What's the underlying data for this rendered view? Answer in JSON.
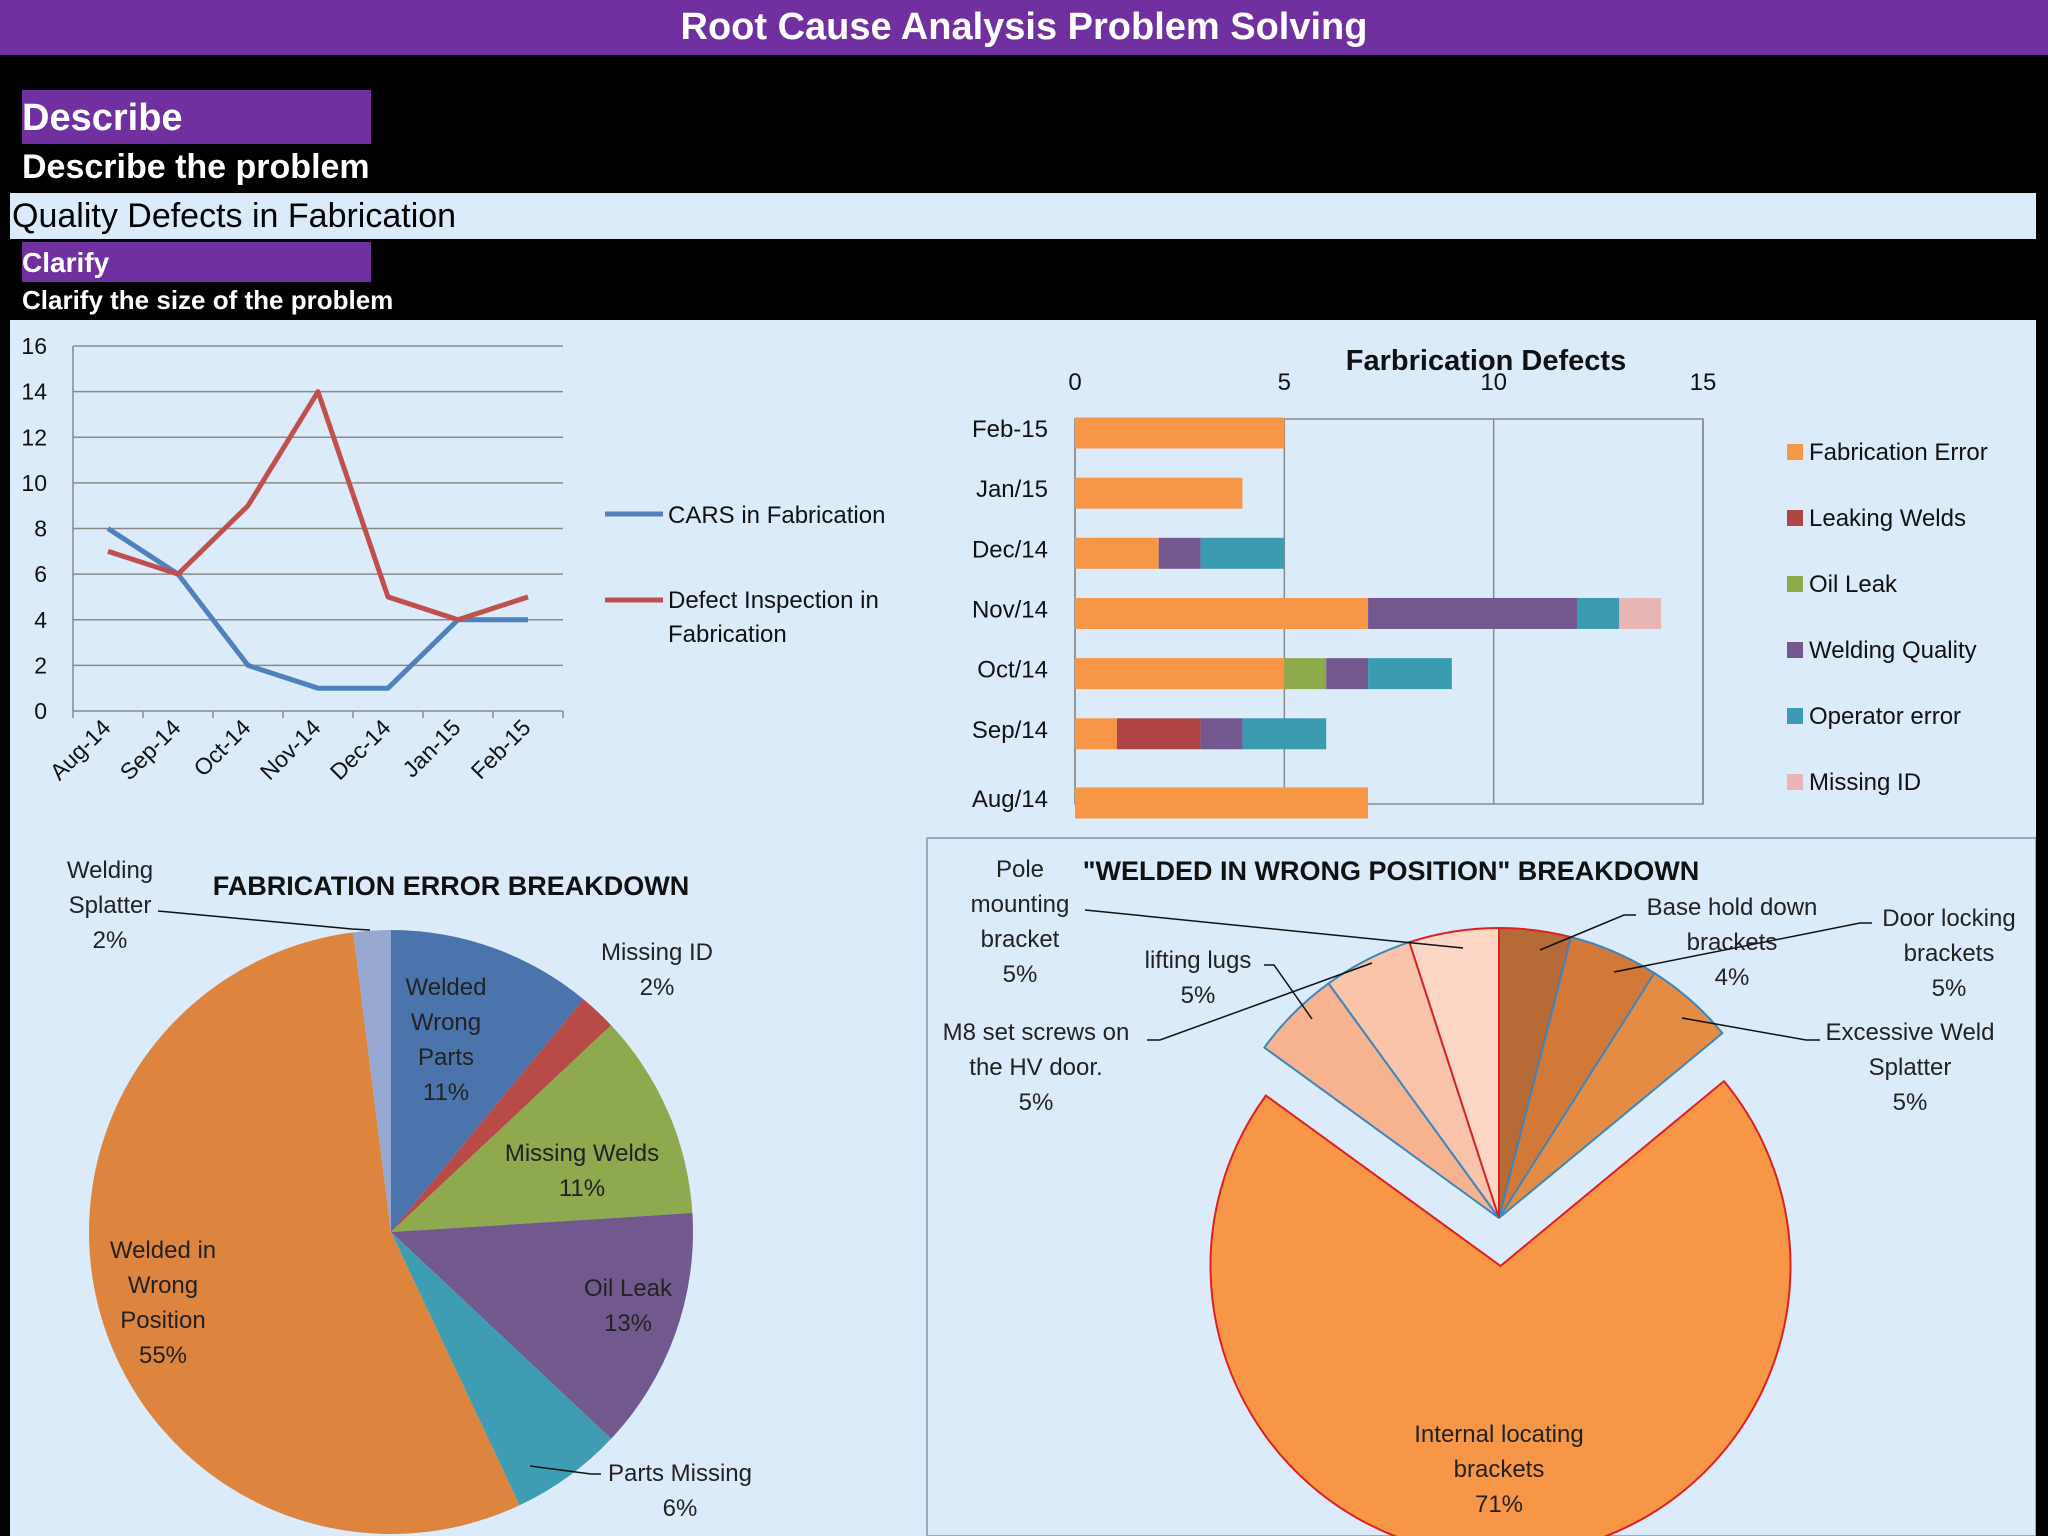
{
  "header": {
    "title": "Root Cause Analysis Problem Solving"
  },
  "describe": {
    "section": "Describe",
    "heading": "Describe the problem",
    "problem": "Quality Defects in Fabrication"
  },
  "clarify": {
    "section": "Clarify",
    "heading": "Clarify the size of the problem"
  },
  "colors": {
    "accent": "#7030a0",
    "panel": "#dcebfa"
  },
  "chart_data": [
    {
      "type": "line",
      "title": "",
      "categories": [
        "Aug-14",
        "Sep-14",
        "Oct-14",
        "Nov-14",
        "Dec-14",
        "Jan-15",
        "Feb-15"
      ],
      "ylim": [
        0,
        16
      ],
      "yticks": [
        "0",
        "2",
        "4",
        "6",
        "8",
        "10",
        "12",
        "14",
        "16"
      ],
      "grid": true,
      "legend": "right",
      "series": [
        {
          "name": "CARS in Fabrication",
          "color": "#4f81bd",
          "values": [
            8,
            6,
            2,
            1,
            1,
            4,
            4
          ]
        },
        {
          "name": "Defect Inspection in Fabrication",
          "color": "#c0504d",
          "values": [
            7,
            6,
            9,
            14,
            5,
            4,
            5
          ]
        }
      ]
    },
    {
      "type": "bar",
      "orientation": "horizontal",
      "stacked": true,
      "title": "Farbrication Defects",
      "categories": [
        "Feb-15",
        "Jan/15",
        "Dec/14",
        "Nov/14",
        "Oct/14",
        "Sep/14",
        "Aug/14"
      ],
      "xlim": [
        0,
        15
      ],
      "xticks": [
        "0",
        "5",
        "10",
        "15"
      ],
      "legend": "right",
      "series": [
        {
          "name": "Fabrication Error",
          "color": "#f79646",
          "values": [
            5,
            4,
            2,
            7,
            5,
            1,
            7
          ]
        },
        {
          "name": "Leaking Welds",
          "color": "#b04545",
          "values": [
            0,
            0,
            0,
            0,
            0,
            2,
            0
          ]
        },
        {
          "name": "Oil Leak",
          "color": "#8dab4b",
          "values": [
            0,
            0,
            0,
            0,
            1,
            0,
            0
          ]
        },
        {
          "name": "Welding Quality",
          "color": "#74578f",
          "values": [
            0,
            0,
            1,
            5,
            1,
            1,
            0
          ]
        },
        {
          "name": "Operator error",
          "color": "#3b9bb0",
          "values": [
            0,
            0,
            2,
            1,
            2,
            2,
            0
          ]
        },
        {
          "name": "Missing ID",
          "color": "#e9b6b7",
          "values": [
            0,
            0,
            0,
            1,
            0,
            0,
            0
          ]
        }
      ]
    },
    {
      "type": "pie",
      "title": "FABRICATION ERROR BREAKDOWN",
      "slices": [
        {
          "label": "Welded Wrong Parts",
          "pct": "11%",
          "value": 11,
          "color": "#4a74ab"
        },
        {
          "label": "Missing ID",
          "pct": "2%",
          "value": 2,
          "color": "#b84a47"
        },
        {
          "label": "Missing Welds",
          "pct": "11%",
          "value": 11,
          "color": "#8fa94e"
        },
        {
          "label": "Oil Leak",
          "pct": "13%",
          "value": 13,
          "color": "#71598e"
        },
        {
          "label": "Parts Missing",
          "pct": "6%",
          "value": 6,
          "color": "#3f9db3"
        },
        {
          "label": "Welded in Wrong Position",
          "pct": "55%",
          "value": 55,
          "color": "#dd843f"
        },
        {
          "label": "Welding Splatter",
          "pct": "2%",
          "value": 2,
          "color": "#98a9d1"
        }
      ]
    },
    {
      "type": "pie",
      "title": "\"WELDED IN WRONG POSITION\" BREAKDOWN",
      "slices": [
        {
          "label": "Base hold down brackets",
          "pct": "4%",
          "value": 4,
          "color": "#b66a35"
        },
        {
          "label": "Door locking brackets",
          "pct": "5%",
          "value": 5,
          "color": "#d27938"
        },
        {
          "label": "Excessive Weld Splatter",
          "pct": "5%",
          "value": 5,
          "color": "#e48b44"
        },
        {
          "label": "Internal locating brackets",
          "pct": "71%",
          "value": 71,
          "color": "#f79646"
        },
        {
          "label": "M8 set screws on the HV door.",
          "pct": "5%",
          "value": 5,
          "color": "#f7b28f"
        },
        {
          "label": "lifting lugs",
          "pct": "5%",
          "value": 5,
          "color": "#fac4aa"
        },
        {
          "label": "Pole mounting bracket",
          "pct": "5%",
          "value": 5,
          "color": "#fdd7c6"
        }
      ]
    }
  ]
}
